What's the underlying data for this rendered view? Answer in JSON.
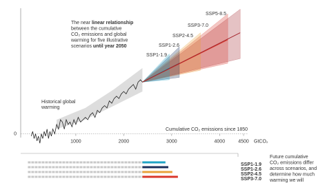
{
  "chart_data": {
    "type": "line",
    "xlim": [
      -150,
      4600
    ],
    "ylim": [
      -0.3,
      2.7
    ],
    "xticks": [
      1000,
      2000,
      3000,
      4000,
      4500
    ],
    "yticks": [
      0
    ],
    "x_unit": "GtCO₂",
    "x_label": "Cumulative CO₂ emissions since 1850",
    "annotation": [
      [
        {
          "text": "The near "
        },
        {
          "text": "linear relationship",
          "bold": true
        }
      ],
      [
        {
          "text": "between the cumulative"
        }
      ],
      [
        {
          "text": "CO₂ emissions and global"
        }
      ],
      [
        {
          "text": "warming for five illustrative"
        }
      ],
      [
        {
          "text": "scenarios "
        },
        {
          "text": "until year 2050",
          "bold": true
        }
      ]
    ],
    "historical": {
      "label_lines": [
        "Historical global",
        "warming"
      ],
      "color": "#222222",
      "x": [
        70,
        100,
        130,
        160,
        190,
        220,
        250,
        280,
        310,
        340,
        370,
        400,
        430,
        460,
        490,
        520,
        560,
        600,
        640,
        680,
        720,
        760,
        800,
        840,
        880,
        920,
        960,
        1000,
        1050,
        1100,
        1150,
        1200,
        1250,
        1300,
        1350,
        1400,
        1450,
        1500,
        1550,
        1600,
        1650,
        1700,
        1750,
        1800,
        1850,
        1900,
        1950,
        2000,
        2050,
        2100,
        2150,
        2200,
        2250,
        2300,
        2350,
        2390
      ],
      "values": [
        -0.05,
        0.05,
        -0.1,
        0.0,
        -0.15,
        -0.05,
        -0.2,
        0.0,
        -0.1,
        0.05,
        -0.05,
        0.1,
        -0.1,
        0.05,
        -0.05,
        0.1,
        0.0,
        0.2,
        0.1,
        0.3,
        0.25,
        0.1,
        0.3,
        0.2,
        0.25,
        0.15,
        0.3,
        0.2,
        0.35,
        0.25,
        0.3,
        0.35,
        0.3,
        0.4,
        0.45,
        0.35,
        0.5,
        0.45,
        0.55,
        0.6,
        0.55,
        0.7,
        0.65,
        0.75,
        0.8,
        0.75,
        0.85,
        0.9,
        0.85,
        0.95,
        1.0,
        1.05,
        0.95,
        1.1,
        1.15,
        1.1
      ]
    },
    "historical_band": {
      "color": "#d4d4d4",
      "x": [
        600,
        1200,
        1800,
        2390
      ],
      "low": [
        0.1,
        0.3,
        0.6,
        0.9
      ],
      "high": [
        0.3,
        0.55,
        0.95,
        1.4
      ]
    },
    "series": [
      {
        "name": "SSP1-1.9",
        "color": "#1fa3c4",
        "x": [
          2390,
          2950
        ],
        "values": [
          1.1,
          1.4
        ],
        "low": [
          1.1,
          1.15
        ],
        "high": [
          1.1,
          1.7
        ]
      },
      {
        "name": "SSP1-2.6",
        "color": "#1a2f5a",
        "x": [
          2390,
          3160
        ],
        "values": [
          1.1,
          1.5
        ],
        "low": [
          1.1,
          1.2
        ],
        "high": [
          1.1,
          1.85
        ]
      },
      {
        "name": "SSP2-4.5",
        "color": "#e8a13a",
        "x": [
          2390,
          3600
        ],
        "values": [
          1.1,
          1.72
        ],
        "low": [
          1.1,
          1.35
        ],
        "high": [
          1.1,
          2.15
        ]
      },
      {
        "name": "SSP3-7.0",
        "color": "#d9372b",
        "x": [
          2390,
          4170
        ],
        "values": [
          1.1,
          2.0
        ],
        "low": [
          1.1,
          1.5
        ],
        "high": [
          1.1,
          2.55
        ]
      },
      {
        "name": "SSP5-8.5",
        "color": "#a3232b",
        "x": [
          2390,
          4430
        ],
        "values": [
          1.1,
          2.15
        ],
        "low": [
          1.1,
          1.6
        ],
        "high": [
          1.1,
          2.65
        ]
      }
    ],
    "emissions_panel": {
      "historical": 2390,
      "values": [
        2870,
        2930,
        3015,
        3130
      ],
      "text_lines": [
        "Future cumulative",
        "CO₂ emissions differ",
        "across scenarios, and",
        "determine how much",
        "warming we will"
      ]
    }
  }
}
